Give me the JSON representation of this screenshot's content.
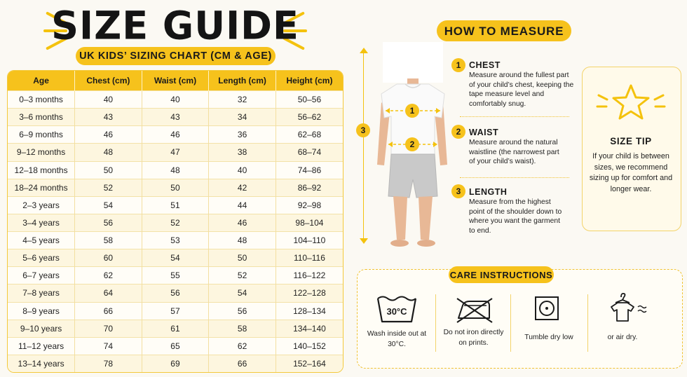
{
  "header": {
    "title": "SIZE GUIDE",
    "subtitle": "UK KIDS’ SIZING CHART (CM & AGE)"
  },
  "size_table": {
    "columns": [
      "Age",
      "Chest (cm)",
      "Waist (cm)",
      "Length (cm)",
      "Height (cm)"
    ],
    "rows": [
      [
        "0–3 months",
        "40",
        "40",
        "32",
        "50–56"
      ],
      [
        "3–6 months",
        "43",
        "43",
        "34",
        "56–62"
      ],
      [
        "6–9 months",
        "46",
        "46",
        "36",
        "62–68"
      ],
      [
        "9–12 months",
        "48",
        "47",
        "38",
        "68–74"
      ],
      [
        "12–18 months",
        "50",
        "48",
        "40",
        "74–86"
      ],
      [
        "18–24 months",
        "52",
        "50",
        "42",
        "86–92"
      ],
      [
        "2–3 years",
        "54",
        "51",
        "44",
        "92–98"
      ],
      [
        "3–4 years",
        "56",
        "52",
        "46",
        "98–104"
      ],
      [
        "4–5 years",
        "58",
        "53",
        "48",
        "104–110"
      ],
      [
        "5–6 years",
        "60",
        "54",
        "50",
        "110–116"
      ],
      [
        "6–7 years",
        "62",
        "55",
        "52",
        "116–122"
      ],
      [
        "7–8 years",
        "64",
        "56",
        "54",
        "122–128"
      ],
      [
        "8–9 years",
        "66",
        "57",
        "56",
        "128–134"
      ],
      [
        "9–10 years",
        "70",
        "61",
        "58",
        "134–140"
      ],
      [
        "11–12 years",
        "74",
        "65",
        "62",
        "140–152"
      ],
      [
        "13–14 years",
        "78",
        "69",
        "66",
        "152–164"
      ]
    ]
  },
  "how_to_measure": {
    "title": "HOW TO MEASURE",
    "figure_markers": [
      "1",
      "2",
      "3"
    ],
    "steps": [
      {
        "number": "1",
        "title": "CHEST",
        "text": "Measure around the fullest part of your child’s chest, keeping the tape measure level and comfortably snug."
      },
      {
        "number": "2",
        "title": "WAIST",
        "text": "Measure around the natural waistline (the narrowest part of your child’s waist)."
      },
      {
        "number": "3",
        "title": "LENGTH",
        "text": "Measure from the highest point of the shoulder down to where you want the garment to end."
      }
    ]
  },
  "size_tip": {
    "title": "SIZE TIP",
    "text": "If your child is between sizes, we recommend sizing up for comfort and longer wear.",
    "icon": "star-icon"
  },
  "care": {
    "title": "CARE INSTRUCTIONS",
    "items": [
      {
        "icon": "wash-30-icon",
        "symbol_text": "30°C",
        "text": "Wash inside out at 30°C."
      },
      {
        "icon": "no-iron-icon",
        "text": "Do not iron directly on prints."
      },
      {
        "icon": "tumble-dry-low-icon",
        "text": "Tumble dry low"
      },
      {
        "icon": "air-dry-icon",
        "text": "or air dry."
      }
    ]
  },
  "colors": {
    "accent": "#f6c21c",
    "background": "#fbf9f3",
    "text": "#1b1b1b"
  }
}
